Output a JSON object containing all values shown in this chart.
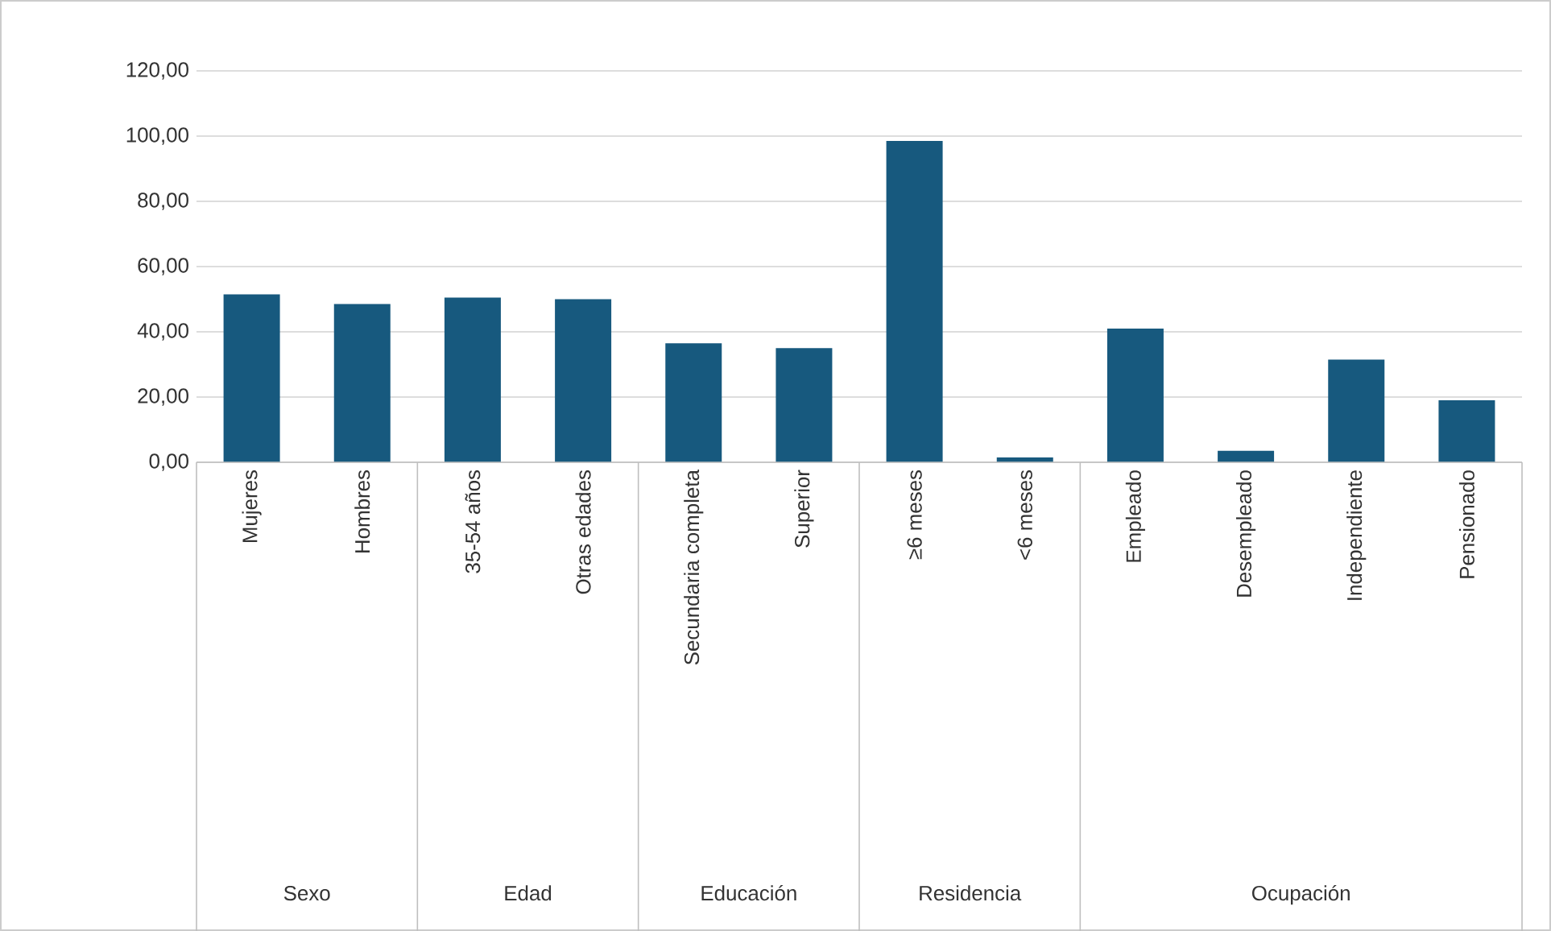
{
  "chart_data": {
    "type": "bar",
    "categories": [
      "Mujeres",
      "Hombres",
      "35-54 años",
      "Otras edades",
      "Secundaria completa",
      "Superior",
      "≥6 meses",
      "<6 meses",
      "Empleado",
      "Desempleado",
      "Independiente",
      "Pensionado"
    ],
    "values": [
      51.5,
      48.5,
      50.5,
      50,
      36.5,
      35,
      98.5,
      1.5,
      41,
      3.5,
      31.5,
      19
    ],
    "color": "#17597e",
    "ylim": [
      0,
      120
    ],
    "yticks": [
      {
        "value": 0,
        "label": "0,00"
      },
      {
        "value": 20,
        "label": "20,00"
      },
      {
        "value": 40,
        "label": "40,00"
      },
      {
        "value": 60,
        "label": "60,00"
      },
      {
        "value": 80,
        "label": "80,00"
      },
      {
        "value": 100,
        "label": "100,00"
      },
      {
        "value": 120,
        "label": "120,00"
      }
    ],
    "grid": "y",
    "annotations": [
      "Sexo",
      "Edad",
      "Educación",
      "Residencia",
      "Ocupación"
    ]
  }
}
